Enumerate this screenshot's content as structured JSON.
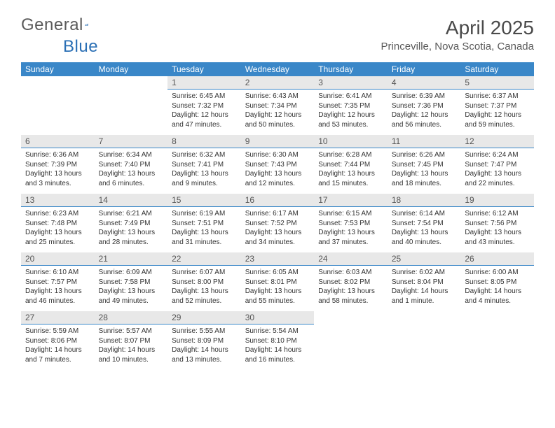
{
  "brand": {
    "word1": "General",
    "word2": "Blue",
    "mark_color": "#2a6fb5"
  },
  "header": {
    "title": "April 2025",
    "location": "Princeville, Nova Scotia, Canada"
  },
  "colors": {
    "header_bg": "#3a87c8",
    "header_fg": "#ffffff",
    "daynum_bg": "#e8e8e8",
    "daynum_border": "#3a87c8",
    "body_text": "#333333",
    "page_bg": "#ffffff"
  },
  "typography": {
    "title_fontsize": 28,
    "location_fontsize": 15,
    "weekday_fontsize": 12,
    "daynum_fontsize": 12,
    "cell_fontsize": 10
  },
  "layout": {
    "columns": 7,
    "week_start": "Sunday",
    "first_day_column_index": 2
  },
  "weekdays": [
    "Sunday",
    "Monday",
    "Tuesday",
    "Wednesday",
    "Thursday",
    "Friday",
    "Saturday"
  ],
  "days": [
    {
      "n": 1,
      "sunrise": "6:45 AM",
      "sunset": "7:32 PM",
      "daylight": "12 hours and 47 minutes."
    },
    {
      "n": 2,
      "sunrise": "6:43 AM",
      "sunset": "7:34 PM",
      "daylight": "12 hours and 50 minutes."
    },
    {
      "n": 3,
      "sunrise": "6:41 AM",
      "sunset": "7:35 PM",
      "daylight": "12 hours and 53 minutes."
    },
    {
      "n": 4,
      "sunrise": "6:39 AM",
      "sunset": "7:36 PM",
      "daylight": "12 hours and 56 minutes."
    },
    {
      "n": 5,
      "sunrise": "6:37 AM",
      "sunset": "7:37 PM",
      "daylight": "12 hours and 59 minutes."
    },
    {
      "n": 6,
      "sunrise": "6:36 AM",
      "sunset": "7:39 PM",
      "daylight": "13 hours and 3 minutes."
    },
    {
      "n": 7,
      "sunrise": "6:34 AM",
      "sunset": "7:40 PM",
      "daylight": "13 hours and 6 minutes."
    },
    {
      "n": 8,
      "sunrise": "6:32 AM",
      "sunset": "7:41 PM",
      "daylight": "13 hours and 9 minutes."
    },
    {
      "n": 9,
      "sunrise": "6:30 AM",
      "sunset": "7:43 PM",
      "daylight": "13 hours and 12 minutes."
    },
    {
      "n": 10,
      "sunrise": "6:28 AM",
      "sunset": "7:44 PM",
      "daylight": "13 hours and 15 minutes."
    },
    {
      "n": 11,
      "sunrise": "6:26 AM",
      "sunset": "7:45 PM",
      "daylight": "13 hours and 18 minutes."
    },
    {
      "n": 12,
      "sunrise": "6:24 AM",
      "sunset": "7:47 PM",
      "daylight": "13 hours and 22 minutes."
    },
    {
      "n": 13,
      "sunrise": "6:23 AM",
      "sunset": "7:48 PM",
      "daylight": "13 hours and 25 minutes."
    },
    {
      "n": 14,
      "sunrise": "6:21 AM",
      "sunset": "7:49 PM",
      "daylight": "13 hours and 28 minutes."
    },
    {
      "n": 15,
      "sunrise": "6:19 AM",
      "sunset": "7:51 PM",
      "daylight": "13 hours and 31 minutes."
    },
    {
      "n": 16,
      "sunrise": "6:17 AM",
      "sunset": "7:52 PM",
      "daylight": "13 hours and 34 minutes."
    },
    {
      "n": 17,
      "sunrise": "6:15 AM",
      "sunset": "7:53 PM",
      "daylight": "13 hours and 37 minutes."
    },
    {
      "n": 18,
      "sunrise": "6:14 AM",
      "sunset": "7:54 PM",
      "daylight": "13 hours and 40 minutes."
    },
    {
      "n": 19,
      "sunrise": "6:12 AM",
      "sunset": "7:56 PM",
      "daylight": "13 hours and 43 minutes."
    },
    {
      "n": 20,
      "sunrise": "6:10 AM",
      "sunset": "7:57 PM",
      "daylight": "13 hours and 46 minutes."
    },
    {
      "n": 21,
      "sunrise": "6:09 AM",
      "sunset": "7:58 PM",
      "daylight": "13 hours and 49 minutes."
    },
    {
      "n": 22,
      "sunrise": "6:07 AM",
      "sunset": "8:00 PM",
      "daylight": "13 hours and 52 minutes."
    },
    {
      "n": 23,
      "sunrise": "6:05 AM",
      "sunset": "8:01 PM",
      "daylight": "13 hours and 55 minutes."
    },
    {
      "n": 24,
      "sunrise": "6:03 AM",
      "sunset": "8:02 PM",
      "daylight": "13 hours and 58 minutes."
    },
    {
      "n": 25,
      "sunrise": "6:02 AM",
      "sunset": "8:04 PM",
      "daylight": "14 hours and 1 minute."
    },
    {
      "n": 26,
      "sunrise": "6:00 AM",
      "sunset": "8:05 PM",
      "daylight": "14 hours and 4 minutes."
    },
    {
      "n": 27,
      "sunrise": "5:59 AM",
      "sunset": "8:06 PM",
      "daylight": "14 hours and 7 minutes."
    },
    {
      "n": 28,
      "sunrise": "5:57 AM",
      "sunset": "8:07 PM",
      "daylight": "14 hours and 10 minutes."
    },
    {
      "n": 29,
      "sunrise": "5:55 AM",
      "sunset": "8:09 PM",
      "daylight": "14 hours and 13 minutes."
    },
    {
      "n": 30,
      "sunrise": "5:54 AM",
      "sunset": "8:10 PM",
      "daylight": "14 hours and 16 minutes."
    }
  ],
  "labels": {
    "sunrise_prefix": "Sunrise: ",
    "sunset_prefix": "Sunset: ",
    "daylight_prefix": "Daylight: "
  }
}
